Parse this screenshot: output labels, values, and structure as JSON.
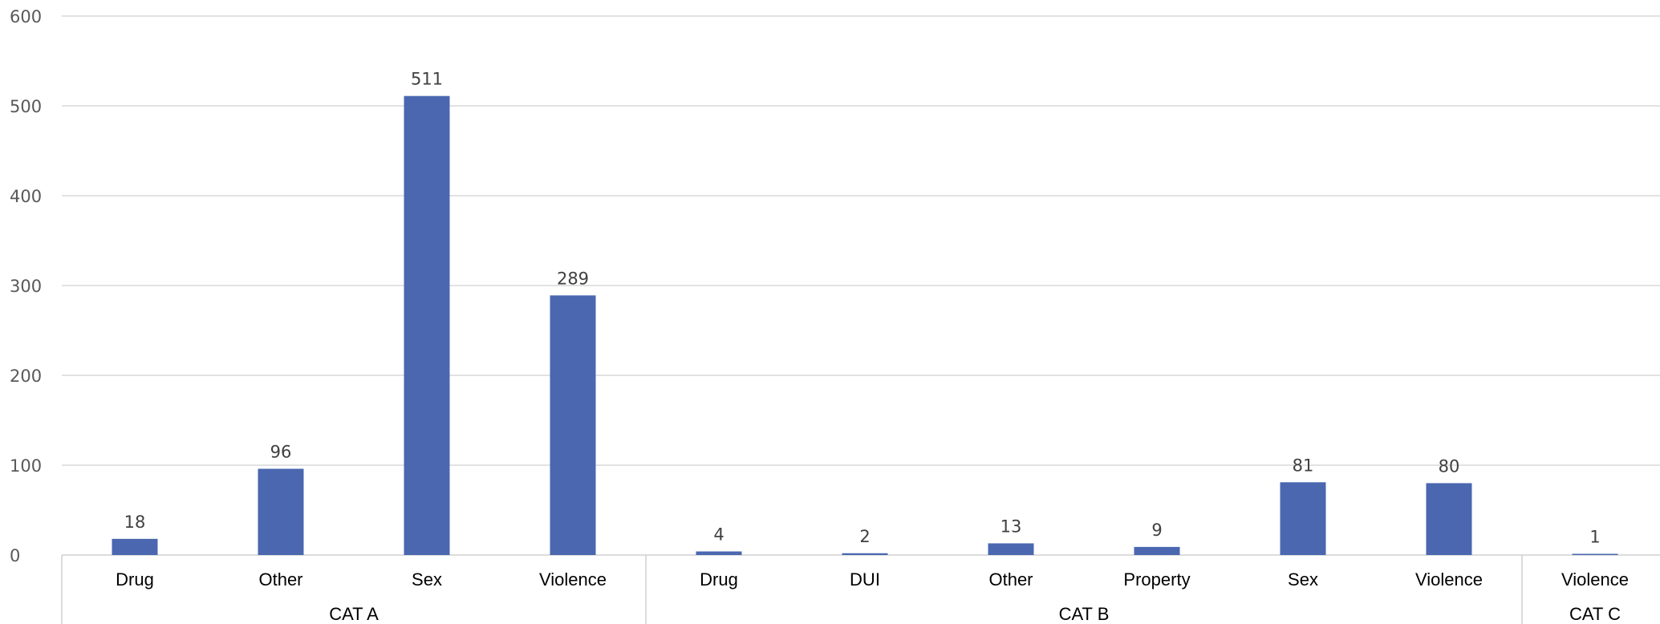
{
  "chart_data": {
    "type": "bar",
    "title": "",
    "xlabel": "",
    "ylabel": "",
    "ylim": [
      0,
      600
    ],
    "yticks": [
      0,
      100,
      200,
      300,
      400,
      500,
      600
    ],
    "grid": true,
    "legend": "none",
    "bar_color": "#4a67b0",
    "groups": [
      {
        "label": "CAT A",
        "categories": [
          "Drug",
          "Other",
          "Sex",
          "Violence"
        ],
        "values": [
          18,
          96,
          511,
          289
        ]
      },
      {
        "label": "CAT B",
        "categories": [
          "Drug",
          "DUI",
          "Other",
          "Property",
          "Sex",
          "Violence"
        ],
        "values": [
          4,
          2,
          13,
          9,
          81,
          80
        ]
      },
      {
        "label": "CAT C",
        "categories": [
          "Violence"
        ],
        "values": [
          1
        ]
      }
    ]
  }
}
